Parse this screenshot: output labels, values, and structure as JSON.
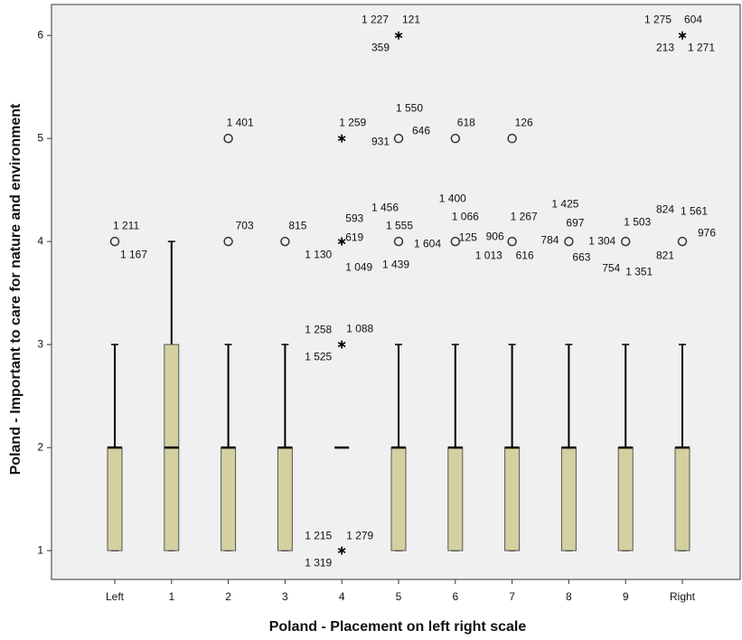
{
  "chart_data": {
    "type": "box",
    "xlabel": "Poland - Placement on left right scale",
    "ylabel": "Poland - Important to care for nature and environment",
    "categories": [
      "Left",
      "1",
      "2",
      "3",
      "4",
      "5",
      "6",
      "7",
      "8",
      "9",
      "Right"
    ],
    "ylim": [
      0.72,
      6.3
    ],
    "yticks": [
      1,
      2,
      3,
      4,
      5,
      6
    ],
    "color": "#d4d0a0",
    "boxes": [
      {
        "min": 1,
        "q1": 1,
        "median": 2,
        "q3": 2,
        "max": 3,
        "outliers": [
          {
            "value": 4,
            "marker": "circle",
            "labels": [
              "1 211",
              "1 167"
            ]
          }
        ]
      },
      {
        "min": 1,
        "q1": 1,
        "median": 2,
        "q3": 3,
        "max": 4,
        "outliers": []
      },
      {
        "min": 1,
        "q1": 1,
        "median": 2,
        "q3": 2,
        "max": 3,
        "outliers": [
          {
            "value": 4,
            "marker": "circle",
            "labels": [
              "703"
            ]
          },
          {
            "value": 5,
            "marker": "circle",
            "labels": [
              "1 401"
            ]
          }
        ]
      },
      {
        "min": 1,
        "q1": 1,
        "median": 2,
        "q3": 2,
        "max": 3,
        "outliers": [
          {
            "value": 4,
            "marker": "circle",
            "labels": [
              "815"
            ]
          }
        ]
      },
      {
        "min": 2,
        "q1": 2,
        "median": 2,
        "q3": 2,
        "max": 2,
        "outliers": [
          {
            "value": 1,
            "marker": "star",
            "labels": [
              "1 215",
              "1 279",
              "1 319"
            ]
          },
          {
            "value": 3,
            "marker": "star",
            "labels": [
              "1 258",
              "1 088",
              "1 525"
            ]
          },
          {
            "value": 4,
            "marker": "star",
            "labels": [
              "593",
              "619",
              "1 130",
              "1 049"
            ]
          },
          {
            "value": 5,
            "marker": "star",
            "labels": [
              "1 259"
            ]
          }
        ]
      },
      {
        "min": 1,
        "q1": 1,
        "median": 2,
        "q3": 2,
        "max": 3,
        "outliers": [
          {
            "value": 4,
            "marker": "circle",
            "labels": [
              "1 456",
              "1 555",
              "1 604",
              "1 439"
            ]
          },
          {
            "value": 5,
            "marker": "circle",
            "labels": [
              "1 550",
              "931",
              "646"
            ]
          },
          {
            "value": 6,
            "marker": "star",
            "labels": [
              "1 227",
              "121",
              "359"
            ]
          }
        ]
      },
      {
        "min": 1,
        "q1": 1,
        "median": 2,
        "q3": 2,
        "max": 3,
        "outliers": [
          {
            "value": 4,
            "marker": "circle",
            "labels": [
              "1 400",
              "1 066",
              "125",
              "1 013"
            ]
          },
          {
            "value": 5,
            "marker": "circle",
            "labels": [
              "618"
            ]
          }
        ]
      },
      {
        "min": 1,
        "q1": 1,
        "median": 2,
        "q3": 2,
        "max": 3,
        "outliers": [
          {
            "value": 4,
            "marker": "circle",
            "labels": [
              "1 267",
              "906",
              "616"
            ]
          },
          {
            "value": 5,
            "marker": "circle",
            "labels": [
              "126"
            ]
          }
        ]
      },
      {
        "min": 1,
        "q1": 1,
        "median": 2,
        "q3": 2,
        "max": 3,
        "outliers": [
          {
            "value": 4,
            "marker": "circle",
            "labels": [
              "1 425",
              "697",
              "784",
              "663"
            ]
          }
        ]
      },
      {
        "min": 1,
        "q1": 1,
        "median": 2,
        "q3": 2,
        "max": 3,
        "outliers": [
          {
            "value": 4,
            "marker": "circle",
            "labels": [
              "1 503",
              "1 304",
              "754",
              "1 351"
            ]
          }
        ]
      },
      {
        "min": 1,
        "q1": 1,
        "median": 2,
        "q3": 2,
        "max": 3,
        "outliers": [
          {
            "value": 4,
            "marker": "circle",
            "labels": [
              "824",
              "1 561",
              "976",
              "821"
            ]
          },
          {
            "value": 6,
            "marker": "star",
            "labels": [
              "1 275",
              "604",
              "213",
              "1 271"
            ]
          }
        ]
      }
    ]
  }
}
